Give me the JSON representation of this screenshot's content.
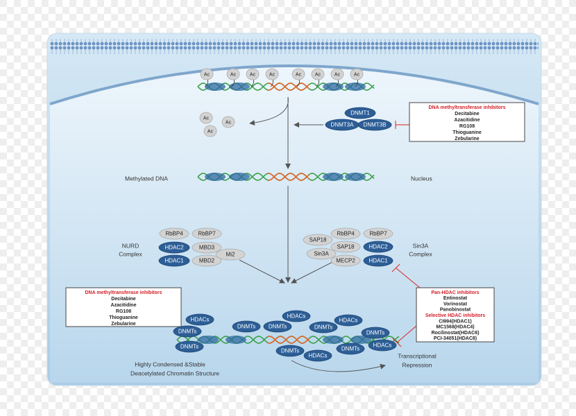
{
  "acetyl_groups": [
    "Ac",
    "Ac",
    "Ac",
    "Ac",
    "Ac",
    "Ac",
    "Ac",
    "Ac"
  ],
  "free_acetyl_groups": [
    "Ac",
    "Ac",
    "Ac"
  ],
  "dnmt_complex": [
    "DNMT1",
    "DNMT3A",
    "DNMT3B"
  ],
  "inhibitor_box_top": {
    "title": "DNA methyltransferase inhibitors",
    "items": [
      "Decitabine",
      "Azacitidine",
      "RG108",
      "Thioguanine",
      "Zebularine"
    ]
  },
  "inhibitor_box_left": {
    "title": "DNA methyltransferase inhibitors",
    "items": [
      "Decitabine",
      "Azacitidine",
      "RG108",
      "Thioguanine",
      "Zebularine"
    ]
  },
  "hdac_box": {
    "pan_title": "Pan-HDAC inhibitors",
    "pan_items": [
      "Entinostat",
      "Vorinostat",
      "Panobinostat"
    ],
    "selective_title": "Selective HDAC inhibitors",
    "selective_items": [
      "CI994(HDAC1)",
      "MC1568(HDAC4)",
      "Rocilinostat(HDAC6)",
      "PCI-34051(HDAC8)"
    ]
  },
  "labels": {
    "methylated_dna": "Methylated DNA",
    "nucleus": "Nucleus",
    "nurd": [
      "NURD",
      "Complex"
    ],
    "sin3a": [
      "Sin3A",
      "Complex"
    ],
    "chromatin": [
      "Highly Condensed &Stable",
      "Deacetylated Chromatin Structure"
    ],
    "repression": [
      "Transcriptional",
      "Repression"
    ]
  },
  "nurd_complex": [
    "RbBP4",
    "RbBP7",
    "HDAC2",
    "MBD3",
    "HDAC1",
    "MBD2",
    "Mi2"
  ],
  "sin3a_complex": [
    "RbBP4",
    "RbBP7",
    "SAP18",
    "SAP18",
    "HDAC2",
    "Sin3A",
    "MECP2",
    "HDAC1"
  ],
  "chromatin_proteins": [
    "HDACs",
    "DNMTs",
    "DNMTs",
    "DNMTs",
    "DNMTs",
    "HDACs",
    "DNMTs",
    "HDACs",
    "DNMTs",
    "HDACs",
    "DNMTs",
    "DNMTs",
    "HDACs"
  ]
}
